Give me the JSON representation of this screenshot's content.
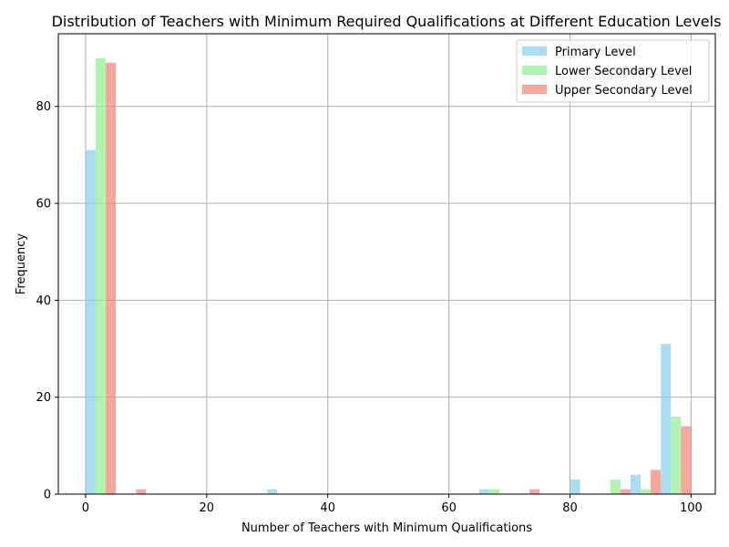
{
  "chart_data": {
    "type": "bar",
    "subtype": "histogram",
    "title": "Distribution of Teachers with Minimum Required Qualifications at Different Education Levels",
    "xlabel": "Number of Teachers with Minimum Qualifications",
    "ylabel": "Frequency",
    "xlim": [
      -4.5,
      104
    ],
    "ylim": [
      0,
      95
    ],
    "xticks": [
      0,
      20,
      40,
      60,
      80,
      100
    ],
    "yticks": [
      0,
      20,
      40,
      60,
      80
    ],
    "grid": true,
    "legend_position": "top-right",
    "bins": [
      [
        0,
        5
      ],
      [
        5,
        10
      ],
      [
        10,
        15
      ],
      [
        15,
        20
      ],
      [
        20,
        25
      ],
      [
        25,
        30
      ],
      [
        30,
        35
      ],
      [
        35,
        40
      ],
      [
        40,
        45
      ],
      [
        45,
        50
      ],
      [
        50,
        55
      ],
      [
        55,
        60
      ],
      [
        60,
        65
      ],
      [
        65,
        70
      ],
      [
        70,
        75
      ],
      [
        75,
        80
      ],
      [
        80,
        85
      ],
      [
        85,
        90
      ],
      [
        90,
        95
      ],
      [
        95,
        100
      ]
    ],
    "series": [
      {
        "name": "Primary Level",
        "color": "#87ceeb",
        "values": [
          71,
          0,
          0,
          0,
          0,
          0,
          1,
          0,
          0,
          0,
          0,
          0,
          0,
          1,
          0,
          0,
          3,
          0,
          4,
          31
        ]
      },
      {
        "name": "Lower Secondary Level",
        "color": "#90ee90",
        "values": [
          90,
          0,
          0,
          0,
          0,
          0,
          0,
          0,
          0,
          0,
          0,
          0,
          0,
          1,
          0,
          0,
          0,
          3,
          1,
          16
        ]
      },
      {
        "name": "Upper Secondary Level",
        "color": "#fa8072",
        "values": [
          89,
          1,
          0,
          0,
          0,
          0,
          0,
          0,
          0,
          0,
          0,
          0,
          0,
          0,
          1,
          0,
          0,
          1,
          5,
          14
        ]
      }
    ]
  }
}
